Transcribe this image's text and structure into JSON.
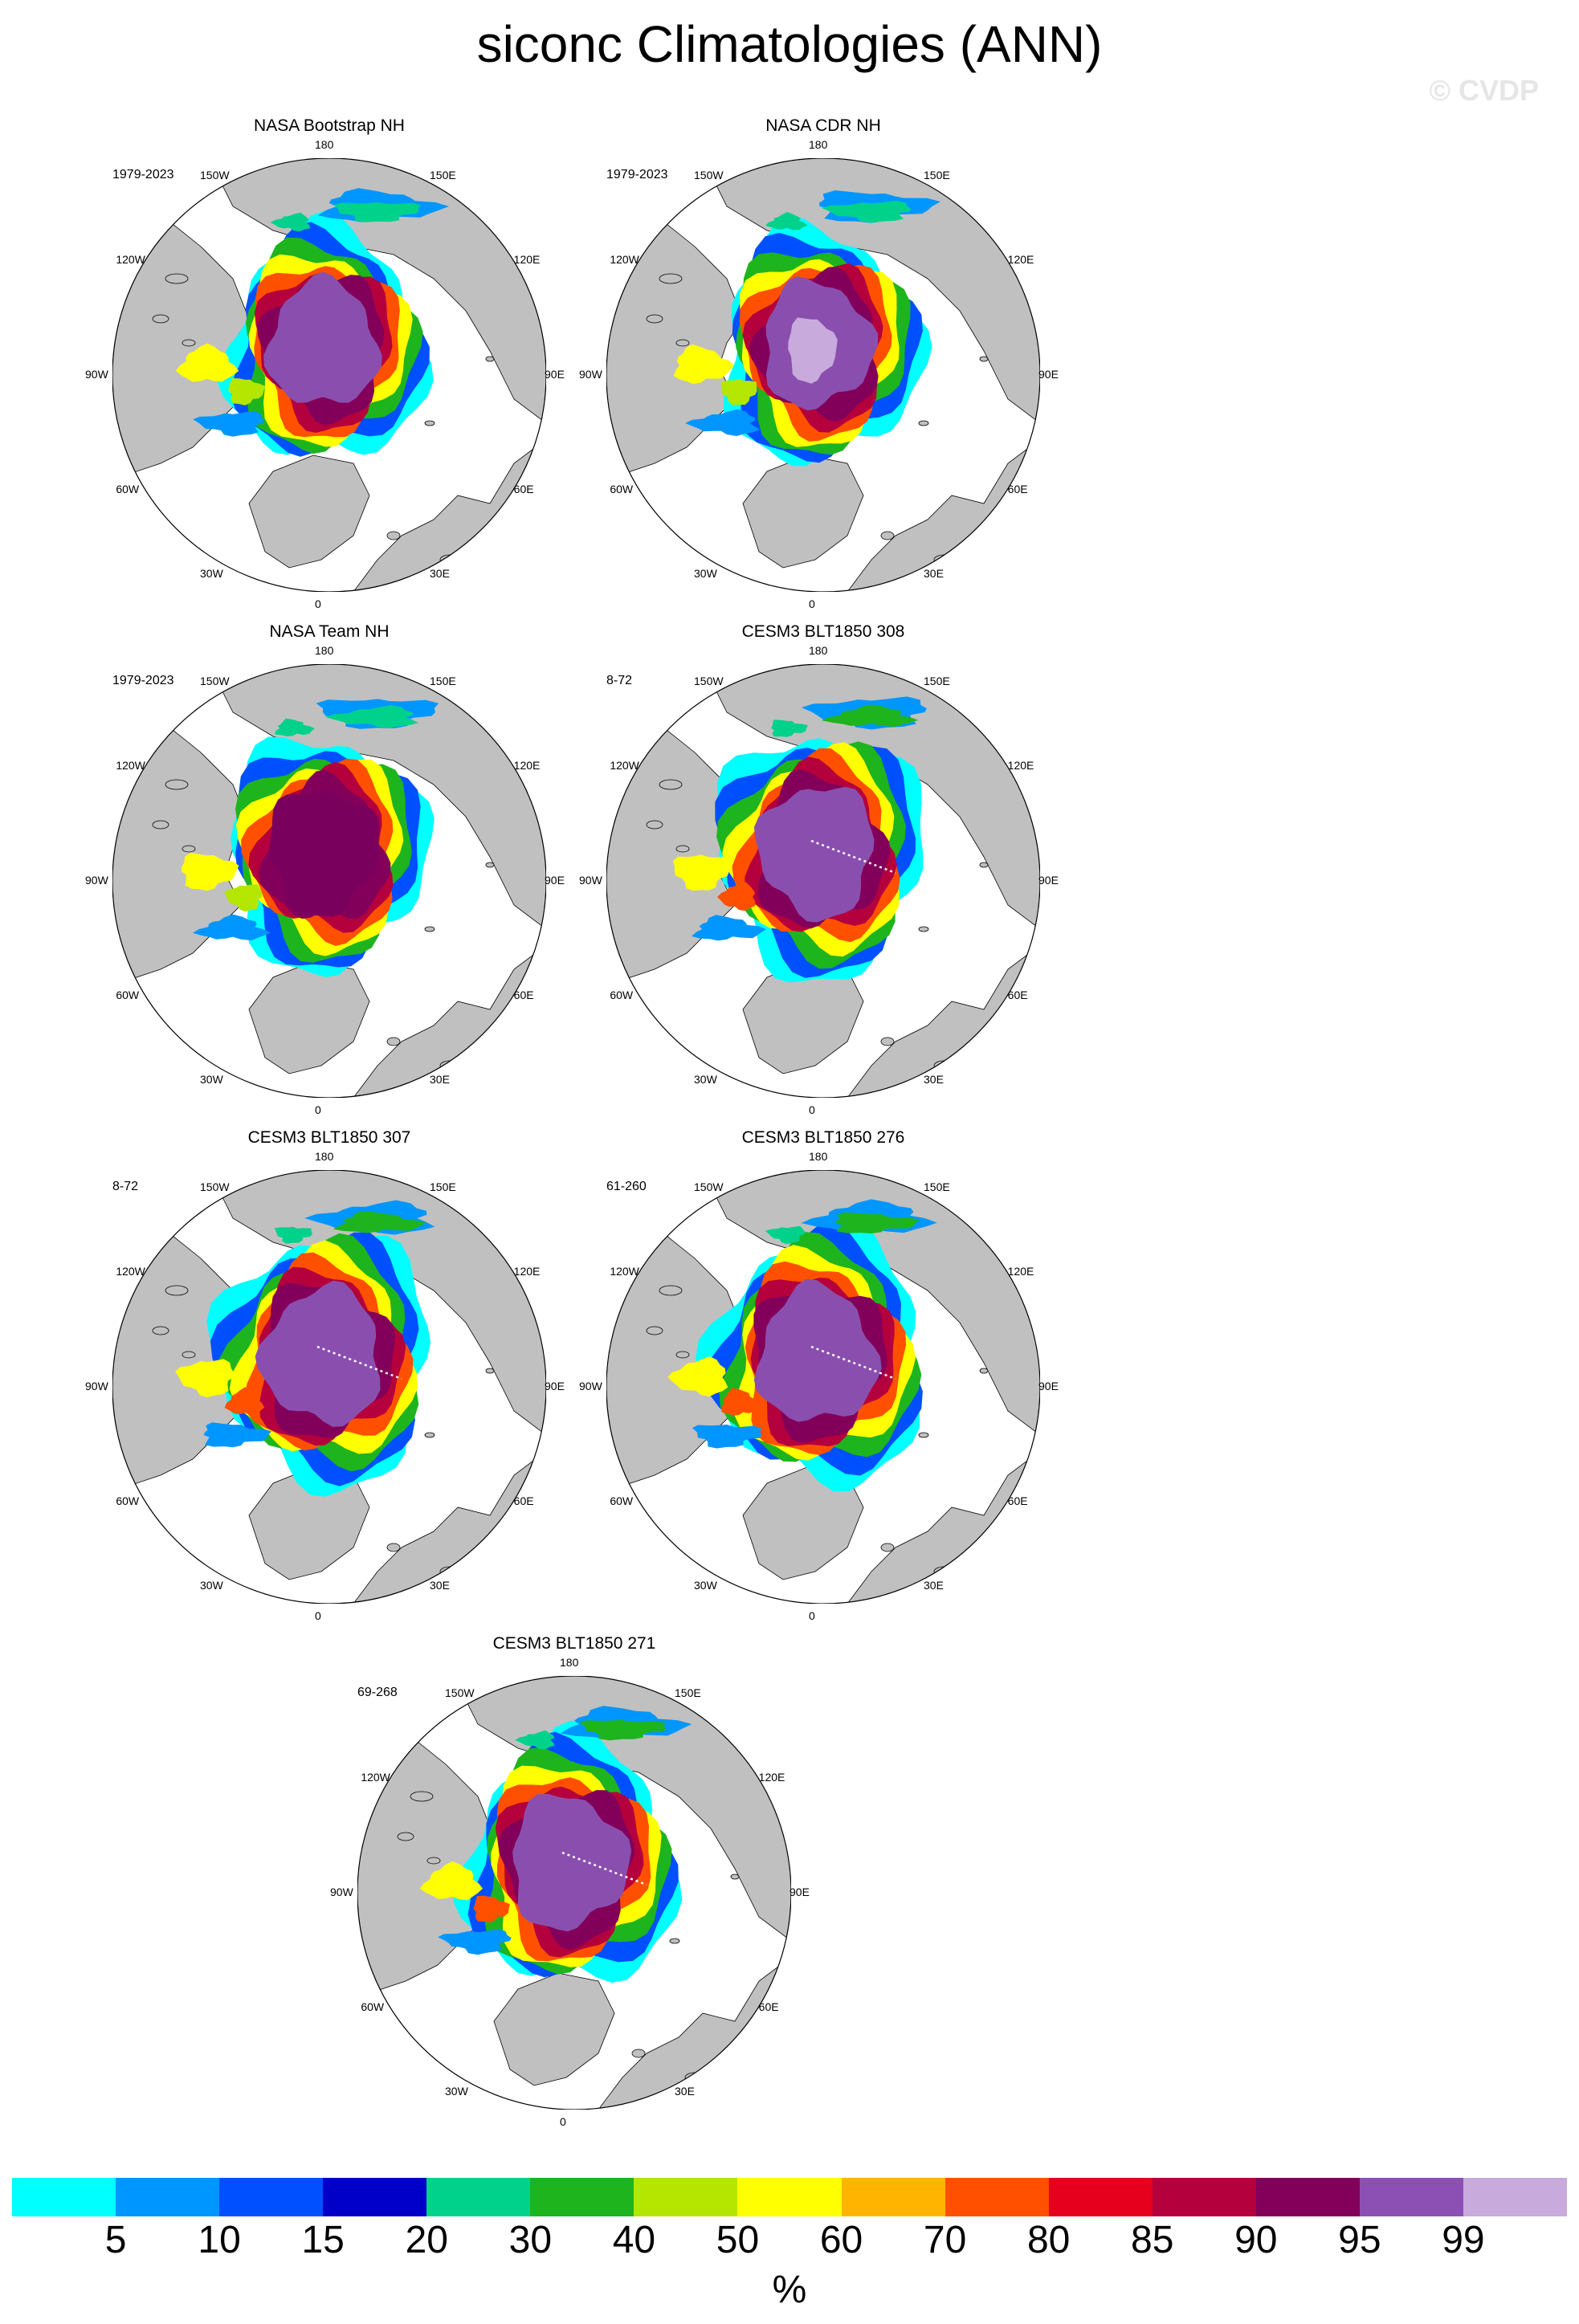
{
  "title": "siconc Climatologies (ANN)",
  "watermark": "© CVDP",
  "panels": [
    {
      "title": "NASA Bootstrap NH",
      "period": "1979-2023",
      "variant": "obs",
      "extent": 1.0,
      "core": "#8a4fae",
      "inner_light": false
    },
    {
      "title": "NASA CDR NH",
      "period": "1979-2023",
      "variant": "obs",
      "extent": 1.0,
      "core": "#8a4fae",
      "inner_light": true
    },
    {
      "title": "NASA Team NH",
      "period": "1979-2023",
      "variant": "obs",
      "extent": 1.0,
      "core": "#7a005e",
      "inner_light": false
    },
    {
      "title": "CESM3 BLT1850 308",
      "period": "8-72",
      "variant": "model",
      "extent": 1.05,
      "core": "#8a4fae",
      "inner_light": false
    },
    {
      "title": "CESM3 BLT1850 307",
      "period": "8-72",
      "variant": "model",
      "extent": 1.08,
      "core": "#8a4fae",
      "inner_light": false
    },
    {
      "title": "CESM3 BLT1850 276",
      "period": "61-260",
      "variant": "model",
      "extent": 1.08,
      "core": "#8a4fae",
      "inner_light": false
    },
    {
      "title": "CESM3 BLT1850 271",
      "period": "69-268",
      "variant": "model",
      "extent": 1.06,
      "core": "#8a4fae",
      "inner_light": false
    }
  ],
  "lon_labels": [
    "180",
    "150E",
    "120E",
    "90E",
    "60E",
    "30E",
    "0",
    "30W",
    "60W",
    "90W",
    "120W",
    "150W"
  ],
  "colorbar": {
    "colors": [
      "#00ffff",
      "#0096ff",
      "#0050ff",
      "#0000c8",
      "#00d28c",
      "#1eb41e",
      "#b4e600",
      "#ffff00",
      "#ffb400",
      "#ff5000",
      "#e6001e",
      "#b4003c",
      "#82005a",
      "#8c50b4",
      "#c8aadc"
    ],
    "ticks": [
      "5",
      "10",
      "15",
      "20",
      "30",
      "40",
      "50",
      "60",
      "70",
      "80",
      "85",
      "90",
      "95",
      "99"
    ],
    "unit": "%"
  },
  "colors": {
    "land": "#c0c0c0",
    "ocean": "#ffffff",
    "coast": "#000000"
  }
}
